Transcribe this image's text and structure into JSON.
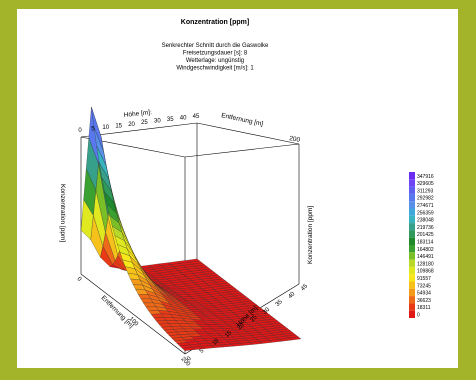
{
  "colors": {
    "background": "#a4b42a",
    "panel": "#ffffff"
  },
  "chart_data": {
    "type": "surface3d",
    "title": "Konzentration [ppm]",
    "subtitle_lines": [
      "Senkrechter Schnitt durch die Gaswolke",
      "Freisetzungsdauer [s]:  8",
      "Wetterlage: ungünstig",
      "Windgeschwindigkeit [m/s]:  1"
    ],
    "axes": {
      "hoehe_label": "Höhe [m]:",
      "hoehe_label_bottom": "Höhe [m]:",
      "hoehe_ticks": [
        0,
        5,
        10,
        15,
        20,
        25,
        30,
        35,
        40,
        45
      ],
      "entfernung_label": "Entfernung [m]",
      "entfernung_ticks_bottom": [
        0,
        100,
        200
      ],
      "entfernung_ticks_back": [
        200
      ],
      "konzentration_label": "Konzentration [ppm]",
      "hoehe_range": [
        0,
        45
      ],
      "entfernung_range": [
        0,
        200
      ]
    },
    "peak_entfernung": 20,
    "peak_konzentration": 347916,
    "legend": {
      "placement": "right",
      "entries": [
        {
          "value": "347916",
          "color": "#6a2bf0"
        },
        {
          "value": "329605",
          "color": "#6f45f5"
        },
        {
          "value": "311293",
          "color": "#6060f0"
        },
        {
          "value": "292982",
          "color": "#5a78ee"
        },
        {
          "value": "274671",
          "color": "#5990e8"
        },
        {
          "value": "256359",
          "color": "#3ea7dc"
        },
        {
          "value": "238048",
          "color": "#38b4c0"
        },
        {
          "value": "219736",
          "color": "#36a08a"
        },
        {
          "value": "201425",
          "color": "#2f9a5a"
        },
        {
          "value": "183114",
          "color": "#1f8a2c"
        },
        {
          "value": "164802",
          "color": "#3aa030"
        },
        {
          "value": "146491",
          "color": "#7abf28"
        },
        {
          "value": "128180",
          "color": "#b8d82a"
        },
        {
          "value": "109868",
          "color": "#e0e820"
        },
        {
          "value": "91557",
          "color": "#f6e61a"
        },
        {
          "value": "73245",
          "color": "#f6c11a"
        },
        {
          "value": "54934",
          "color": "#f49a1a"
        },
        {
          "value": "36623",
          "color": "#ef6a18"
        },
        {
          "value": "18311",
          "color": "#e83a16"
        },
        {
          "value": "0",
          "color": "#e01818"
        }
      ]
    }
  }
}
